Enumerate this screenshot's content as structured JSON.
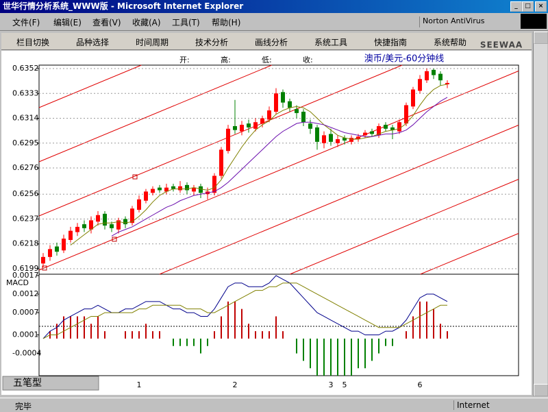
{
  "window": {
    "title": "世华行情分析系统_WWW版 - Microsoft Internet Explorer",
    "menu": [
      "文件(F)",
      "编辑(E)",
      "查看(V)",
      "收藏(A)",
      "工具(T)",
      "帮助(H)"
    ],
    "norton": "Norton AntiVirus",
    "status": "完毕",
    "zone": "Internet"
  },
  "toolbar": [
    "栏目切换",
    "品种选择",
    "时间周期",
    "技术分析",
    "画线分析",
    "系统工具",
    "快捷指南",
    "系统帮助"
  ],
  "header": {
    "open": "开:",
    "high": "高:",
    "low": "低:",
    "close": "收:",
    "logo": "SEEWAA"
  },
  "bottom_label": "五笔型",
  "chart_data": [
    {
      "type": "candlestick",
      "title": "澳币/美元-60分钟线",
      "categories": [
        null,
        null,
        null,
        null,
        null,
        null,
        null,
        null,
        null,
        null,
        null,
        null,
        null,
        null,
        "1",
        null,
        null,
        null,
        null,
        null,
        null,
        null,
        null,
        null,
        null,
        null,
        null,
        null,
        "2",
        null,
        null,
        null,
        null,
        null,
        null,
        null,
        null,
        null,
        null,
        null,
        null,
        null,
        "3",
        null,
        "5",
        null,
        null,
        null,
        null,
        null,
        null,
        null,
        null,
        null,
        null,
        "6",
        null,
        null,
        null,
        null
      ],
      "open": [
        0.6203,
        0.6208,
        0.6216,
        0.6213,
        0.6221,
        0.6227,
        0.6233,
        0.6229,
        0.6235,
        0.6241,
        0.6233,
        0.6229,
        0.6237,
        0.6234,
        0.6244,
        0.6251,
        0.6257,
        0.6261,
        0.6258,
        0.6262,
        0.6259,
        0.6263,
        0.6258,
        0.6262,
        0.6256,
        0.6257,
        0.627,
        0.6289,
        0.6308,
        0.6304,
        0.631,
        0.6306,
        0.631,
        0.6313,
        0.6319,
        0.6334,
        0.6327,
        0.6321,
        0.6319,
        0.631,
        0.6307,
        0.6295,
        0.6302,
        0.6295,
        0.6299,
        0.6296,
        0.6298,
        0.6301,
        0.6304,
        0.6301,
        0.6309,
        0.6307,
        0.6304,
        0.631,
        0.6323,
        0.6335,
        0.6343,
        0.6351,
        0.6348,
        0.634
      ],
      "high": [
        0.6211,
        0.6217,
        0.6219,
        0.6225,
        0.6231,
        0.6234,
        0.6236,
        0.6239,
        0.6243,
        0.6243,
        0.6235,
        0.6238,
        0.6239,
        0.6247,
        0.6255,
        0.626,
        0.6262,
        0.6263,
        0.6264,
        0.6264,
        0.6266,
        0.6265,
        0.6263,
        0.6264,
        0.6261,
        0.6272,
        0.6292,
        0.6309,
        0.6328,
        0.6312,
        0.6313,
        0.6314,
        0.6316,
        0.6323,
        0.6337,
        0.6336,
        0.6329,
        0.6324,
        0.6321,
        0.6313,
        0.6309,
        0.6304,
        0.6306,
        0.6301,
        0.6301,
        0.6301,
        0.6302,
        0.6305,
        0.6306,
        0.631,
        0.6311,
        0.6309,
        0.6313,
        0.6326,
        0.6338,
        0.6347,
        0.6352,
        0.6352,
        0.635,
        0.6343
      ],
      "low": [
        0.62,
        0.6205,
        0.6209,
        0.6211,
        0.6219,
        0.6224,
        0.6227,
        0.6226,
        0.6232,
        0.6229,
        0.6227,
        0.6226,
        0.623,
        0.6232,
        0.6242,
        0.6249,
        0.6255,
        0.6257,
        0.6256,
        0.6258,
        0.6257,
        0.6256,
        0.6255,
        0.6253,
        0.6252,
        0.6255,
        0.6268,
        0.6287,
        0.6302,
        0.6301,
        0.6303,
        0.6304,
        0.6307,
        0.6311,
        0.6317,
        0.6322,
        0.6319,
        0.6314,
        0.6308,
        0.6302,
        0.629,
        0.6291,
        0.6293,
        0.6292,
        0.6294,
        0.6294,
        0.6296,
        0.6299,
        0.63,
        0.6299,
        0.6304,
        0.6298,
        0.6302,
        0.6308,
        0.6321,
        0.6333,
        0.6341,
        0.6344,
        0.6339,
        0.6337
      ],
      "close": [
        0.6208,
        0.6214,
        0.6212,
        0.6222,
        0.6228,
        0.6231,
        0.623,
        0.6236,
        0.624,
        0.6232,
        0.623,
        0.6236,
        0.6233,
        0.6245,
        0.6252,
        0.6258,
        0.626,
        0.6259,
        0.6261,
        0.626,
        0.6262,
        0.6259,
        0.6261,
        0.6257,
        0.6258,
        0.627,
        0.629,
        0.6306,
        0.6305,
        0.6309,
        0.6307,
        0.6311,
        0.6314,
        0.632,
        0.6333,
        0.6326,
        0.6322,
        0.6318,
        0.6311,
        0.6306,
        0.6296,
        0.6301,
        0.6296,
        0.6298,
        0.6297,
        0.6299,
        0.63,
        0.6303,
        0.6302,
        0.6308,
        0.6306,
        0.6305,
        0.6311,
        0.6324,
        0.6336,
        0.6344,
        0.635,
        0.6347,
        0.6343,
        0.6341
      ],
      "up_color": "#ff0000",
      "down_color": "#008000",
      "series": [
        {
          "color": "#808000",
          "values": [
            null,
            null,
            null,
            null,
            0.6217,
            0.6221,
            0.6225,
            0.6229,
            0.6233,
            0.6234,
            0.6234,
            0.6235,
            0.6234,
            0.6235,
            0.6239,
            0.6244,
            0.625,
            0.6255,
            0.6258,
            0.626,
            0.626,
            0.626,
            0.6261,
            0.626,
            0.6259,
            0.6261,
            0.6267,
            0.6276,
            0.6284,
            0.6292,
            0.6299,
            0.6305,
            0.6309,
            0.6312,
            0.6317,
            0.632,
            0.6322,
            0.6323,
            0.6322,
            0.6319,
            0.6314,
            0.6309,
            0.6305,
            0.6301,
            0.6299,
            0.6298,
            0.6298,
            0.6299,
            0.63,
            0.6302,
            0.6304,
            0.6305,
            0.6306,
            0.631,
            0.6316,
            0.6324,
            0.6331,
            0.6336,
            0.6339,
            0.634
          ]
        },
        {
          "color": "#6a0dad",
          "values": [
            null,
            null,
            null,
            null,
            null,
            null,
            null,
            null,
            null,
            null,
            0.6224,
            0.6227,
            0.6229,
            0.6231,
            0.6234,
            0.6237,
            0.624,
            0.6243,
            0.6246,
            0.6248,
            0.6251,
            0.6253,
            0.6255,
            0.6256,
            0.6257,
            0.6258,
            0.6261,
            0.6265,
            0.627,
            0.6275,
            0.628,
            0.6285,
            0.629,
            0.6295,
            0.63,
            0.6304,
            0.6307,
            0.631,
            0.6311,
            0.6311,
            0.631,
            0.6309,
            0.6307,
            0.6305,
            0.6303,
            0.6302,
            0.6301,
            0.63,
            0.63,
            0.6301,
            0.6302,
            0.6302,
            0.6303,
            0.6305,
            0.6309,
            0.6314,
            0.6319,
            0.6323,
            0.6327,
            0.633
          ]
        }
      ],
      "ylim": [
        0.6199,
        0.6352
      ],
      "yticks": [
        0.6199,
        0.6218,
        0.6237,
        0.6256,
        0.6276,
        0.6295,
        0.6314,
        0.6333,
        0.6352
      ],
      "grid": true
    },
    {
      "type": "line",
      "title": "MACD",
      "series": [
        {
          "color": "#00008b",
          "style": "line",
          "values": [
            0,
            0.0002,
            0.0003,
            0.0005,
            0.0006,
            0.0007,
            0.0008,
            0.0008,
            0.0009,
            0.0008,
            0.0007,
            0.0007,
            0.0008,
            0.0008,
            0.0009,
            0.001,
            0.001,
            0.001,
            0.0009,
            0.0008,
            0.0008,
            0.0007,
            0.0007,
            0.0006,
            0.0006,
            0.0008,
            0.0011,
            0.0014,
            0.0015,
            0.0015,
            0.0014,
            0.0014,
            0.0014,
            0.0015,
            0.0017,
            0.0016,
            0.0015,
            0.0013,
            0.0011,
            0.0009,
            0.0007,
            0.0006,
            0.0005,
            0.0004,
            0.0003,
            0.0002,
            0.0002,
            0.0001,
            0.0001,
            0.0001,
            0.0002,
            0.0002,
            0.0003,
            0.0005,
            0.0008,
            0.0011,
            0.0012,
            0.0012,
            0.0011,
            0.001
          ]
        },
        {
          "color": "#808000",
          "style": "line",
          "values": [
            0,
            0.0001,
            0.0001,
            0.0002,
            0.0003,
            0.0004,
            0.0005,
            0.0006,
            0.0006,
            0.0007,
            0.0007,
            0.0007,
            0.0007,
            0.0007,
            0.0008,
            0.0008,
            0.0009,
            0.0009,
            0.0009,
            0.0009,
            0.0009,
            0.0008,
            0.0008,
            0.0008,
            0.0007,
            0.0007,
            0.0008,
            0.0009,
            0.001,
            0.0011,
            0.0012,
            0.0013,
            0.0013,
            0.0014,
            0.0014,
            0.0015,
            0.0015,
            0.0015,
            0.0014,
            0.0013,
            0.0012,
            0.0011,
            0.001,
            0.0009,
            0.0008,
            0.0007,
            0.0006,
            0.0005,
            0.0004,
            0.0003,
            0.0003,
            0.0003,
            0.0003,
            0.0004,
            0.0005,
            0.0006,
            0.0007,
            0.0008,
            0.0009,
            0.0009
          ]
        },
        {
          "color": "#c00000",
          "negative_color": "#008000",
          "style": "bar",
          "values": [
            0,
            0.0002,
            0.0004,
            0.0006,
            0.0006,
            0.0006,
            0.0006,
            0.0004,
            0.0006,
            0.0002,
            0,
            0,
            0.0002,
            0.0002,
            0.0002,
            0.0004,
            0.0002,
            0.0002,
            0,
            -0.0002,
            -0.0002,
            -0.0002,
            -0.0002,
            -0.0004,
            -0.0002,
            0.0002,
            0.0006,
            0.001,
            0.001,
            0.0008,
            0.0004,
            0.0002,
            0.0002,
            0.0002,
            0.0006,
            0.0002,
            0,
            -0.0004,
            -0.0006,
            -0.0008,
            -0.001,
            -0.001,
            -0.001,
            -0.001,
            -0.001,
            -0.001,
            -0.0008,
            -0.0008,
            -0.0006,
            -0.0004,
            -0.0002,
            -0.0002,
            0,
            0.0002,
            0.0006,
            0.001,
            0.001,
            0.0008,
            0.0004,
            0.0002
          ]
        }
      ],
      "ylim": [
        -0.001,
        0.0017
      ],
      "yticks": [
        -0.0004,
        0.0001,
        0.0007,
        0.0012,
        0.0017
      ],
      "grid": false
    }
  ]
}
